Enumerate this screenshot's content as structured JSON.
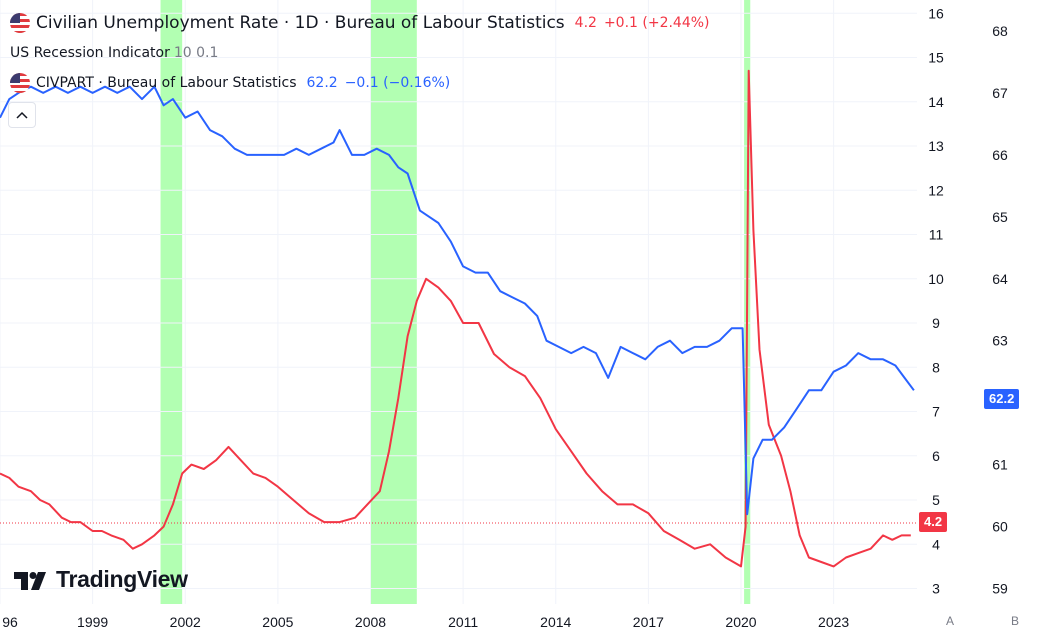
{
  "legend": {
    "main_title": "Civilian Unemployment Rate · 1D · Bureau of Labour Statistics",
    "main_value": "4.2",
    "main_change": "+0.1 (+2.44%)",
    "recession_title": "US Recession Indicator",
    "recession_params": "10 0.1",
    "civpart_title": "CIVPART · Bureau of Labour Statistics",
    "civpart_value": "62.2",
    "civpart_change": "−0.1 (−0.16%)"
  },
  "branding": {
    "logo_text": "TradingView"
  },
  "badges": {
    "civpart_last": "62.2",
    "unrate_last": "4.2"
  },
  "scale_buttons": {
    "left": "A",
    "right": "B"
  },
  "colors": {
    "unemployment": "#f23645",
    "participation": "#2962ff",
    "recession": "#b2ffb2",
    "grid": "#f0f3fa"
  },
  "chart_data": {
    "type": "line",
    "x_unit": "year",
    "x_ticks": [
      "96",
      "1999",
      "2002",
      "2005",
      "2008",
      "2011",
      "2014",
      "2017",
      "2020",
      "2023"
    ],
    "x_tick_values": [
      1996,
      1999,
      2002,
      2005,
      2008,
      2011,
      2014,
      2017,
      2020,
      2023
    ],
    "xlim": [
      1996,
      2025.7
    ],
    "y_left_axis": {
      "ticks": [
        3,
        4,
        5,
        6,
        7,
        8,
        9,
        10,
        11,
        12,
        13,
        14,
        15,
        16
      ],
      "ylim": [
        2.65,
        16.3
      ]
    },
    "y_right_axis": {
      "ticks": [
        59,
        60,
        61,
        62,
        63,
        64,
        65,
        66,
        67,
        68
      ],
      "ylim": [
        58.75,
        68.5
      ]
    },
    "recessions": [
      [
        2001.2,
        2001.9
      ],
      [
        2008.0,
        2009.5
      ],
      [
        2020.1,
        2020.3
      ]
    ],
    "series": [
      {
        "name": "Civilian Unemployment Rate",
        "axis": "left",
        "color": "#f23645",
        "points": [
          [
            1996.0,
            5.6
          ],
          [
            1996.3,
            5.5
          ],
          [
            1996.6,
            5.3
          ],
          [
            1997.0,
            5.2
          ],
          [
            1997.3,
            5.0
          ],
          [
            1997.6,
            4.9
          ],
          [
            1998.0,
            4.6
          ],
          [
            1998.3,
            4.5
          ],
          [
            1998.6,
            4.5
          ],
          [
            1999.0,
            4.3
          ],
          [
            1999.3,
            4.3
          ],
          [
            1999.6,
            4.2
          ],
          [
            2000.0,
            4.1
          ],
          [
            2000.3,
            3.9
          ],
          [
            2000.6,
            4.0
          ],
          [
            2001.0,
            4.2
          ],
          [
            2001.3,
            4.4
          ],
          [
            2001.6,
            4.9
          ],
          [
            2001.9,
            5.6
          ],
          [
            2002.2,
            5.8
          ],
          [
            2002.6,
            5.7
          ],
          [
            2003.0,
            5.9
          ],
          [
            2003.4,
            6.2
          ],
          [
            2003.8,
            5.9
          ],
          [
            2004.2,
            5.6
          ],
          [
            2004.6,
            5.5
          ],
          [
            2005.0,
            5.3
          ],
          [
            2005.5,
            5.0
          ],
          [
            2006.0,
            4.7
          ],
          [
            2006.5,
            4.5
          ],
          [
            2007.0,
            4.5
          ],
          [
            2007.5,
            4.6
          ],
          [
            2007.9,
            4.9
          ],
          [
            2008.3,
            5.2
          ],
          [
            2008.6,
            6.1
          ],
          [
            2008.9,
            7.3
          ],
          [
            2009.2,
            8.7
          ],
          [
            2009.5,
            9.5
          ],
          [
            2009.8,
            10.0
          ],
          [
            2010.2,
            9.8
          ],
          [
            2010.6,
            9.5
          ],
          [
            2011.0,
            9.0
          ],
          [
            2011.5,
            9.0
          ],
          [
            2012.0,
            8.3
          ],
          [
            2012.5,
            8.0
          ],
          [
            2013.0,
            7.8
          ],
          [
            2013.5,
            7.3
          ],
          [
            2014.0,
            6.6
          ],
          [
            2014.5,
            6.1
          ],
          [
            2015.0,
            5.6
          ],
          [
            2015.5,
            5.2
          ],
          [
            2016.0,
            4.9
          ],
          [
            2016.5,
            4.9
          ],
          [
            2017.0,
            4.7
          ],
          [
            2017.5,
            4.3
          ],
          [
            2018.0,
            4.1
          ],
          [
            2018.5,
            3.9
          ],
          [
            2019.0,
            4.0
          ],
          [
            2019.5,
            3.7
          ],
          [
            2020.0,
            3.5
          ],
          [
            2020.15,
            4.4
          ],
          [
            2020.25,
            14.7
          ],
          [
            2020.4,
            11.1
          ],
          [
            2020.6,
            8.4
          ],
          [
            2020.9,
            6.7
          ],
          [
            2021.3,
            6.0
          ],
          [
            2021.6,
            5.2
          ],
          [
            2021.9,
            4.2
          ],
          [
            2022.2,
            3.7
          ],
          [
            2022.6,
            3.6
          ],
          [
            2023.0,
            3.5
          ],
          [
            2023.4,
            3.7
          ],
          [
            2023.8,
            3.8
          ],
          [
            2024.2,
            3.9
          ],
          [
            2024.6,
            4.2
          ],
          [
            2024.9,
            4.1
          ],
          [
            2025.2,
            4.2
          ],
          [
            2025.5,
            4.2
          ]
        ]
      },
      {
        "name": "CIVPART",
        "axis": "right",
        "color": "#2962ff",
        "points": [
          [
            1996.0,
            66.6
          ],
          [
            1996.3,
            66.9
          ],
          [
            1996.6,
            67.0
          ],
          [
            1997.0,
            67.1
          ],
          [
            1997.4,
            67.0
          ],
          [
            1997.8,
            67.1
          ],
          [
            1998.2,
            67.0
          ],
          [
            1998.6,
            67.1
          ],
          [
            1999.0,
            67.0
          ],
          [
            1999.4,
            67.1
          ],
          [
            1999.8,
            67.0
          ],
          [
            2000.2,
            67.1
          ],
          [
            2000.6,
            66.9
          ],
          [
            2001.0,
            67.1
          ],
          [
            2001.3,
            66.8
          ],
          [
            2001.6,
            66.9
          ],
          [
            2002.0,
            66.6
          ],
          [
            2002.4,
            66.7
          ],
          [
            2002.8,
            66.4
          ],
          [
            2003.2,
            66.3
          ],
          [
            2003.6,
            66.1
          ],
          [
            2004.0,
            66.0
          ],
          [
            2004.4,
            66.0
          ],
          [
            2004.8,
            66.0
          ],
          [
            2005.2,
            66.0
          ],
          [
            2005.6,
            66.1
          ],
          [
            2006.0,
            66.0
          ],
          [
            2006.4,
            66.1
          ],
          [
            2006.8,
            66.2
          ],
          [
            2007.0,
            66.4
          ],
          [
            2007.4,
            66.0
          ],
          [
            2007.8,
            66.0
          ],
          [
            2008.2,
            66.1
          ],
          [
            2008.6,
            66.0
          ],
          [
            2008.9,
            65.8
          ],
          [
            2009.2,
            65.7
          ],
          [
            2009.6,
            65.1
          ],
          [
            2009.9,
            65.0
          ],
          [
            2010.2,
            64.9
          ],
          [
            2010.6,
            64.6
          ],
          [
            2011.0,
            64.2
          ],
          [
            2011.4,
            64.1
          ],
          [
            2011.8,
            64.1
          ],
          [
            2012.2,
            63.8
          ],
          [
            2012.6,
            63.7
          ],
          [
            2013.0,
            63.6
          ],
          [
            2013.4,
            63.4
          ],
          [
            2013.7,
            63.0
          ],
          [
            2014.1,
            62.9
          ],
          [
            2014.5,
            62.8
          ],
          [
            2014.9,
            62.9
          ],
          [
            2015.3,
            62.8
          ],
          [
            2015.7,
            62.4
          ],
          [
            2016.1,
            62.9
          ],
          [
            2016.5,
            62.8
          ],
          [
            2016.9,
            62.7
          ],
          [
            2017.3,
            62.9
          ],
          [
            2017.7,
            63.0
          ],
          [
            2018.1,
            62.8
          ],
          [
            2018.5,
            62.9
          ],
          [
            2018.9,
            62.9
          ],
          [
            2019.3,
            63.0
          ],
          [
            2019.7,
            63.2
          ],
          [
            2020.05,
            63.2
          ],
          [
            2020.2,
            60.2
          ],
          [
            2020.4,
            61.1
          ],
          [
            2020.7,
            61.4
          ],
          [
            2021.0,
            61.4
          ],
          [
            2021.4,
            61.6
          ],
          [
            2021.8,
            61.9
          ],
          [
            2022.2,
            62.2
          ],
          [
            2022.6,
            62.2
          ],
          [
            2023.0,
            62.5
          ],
          [
            2023.4,
            62.6
          ],
          [
            2023.8,
            62.8
          ],
          [
            2024.2,
            62.7
          ],
          [
            2024.6,
            62.7
          ],
          [
            2025.0,
            62.6
          ],
          [
            2025.3,
            62.4
          ],
          [
            2025.6,
            62.2
          ]
        ]
      }
    ]
  }
}
